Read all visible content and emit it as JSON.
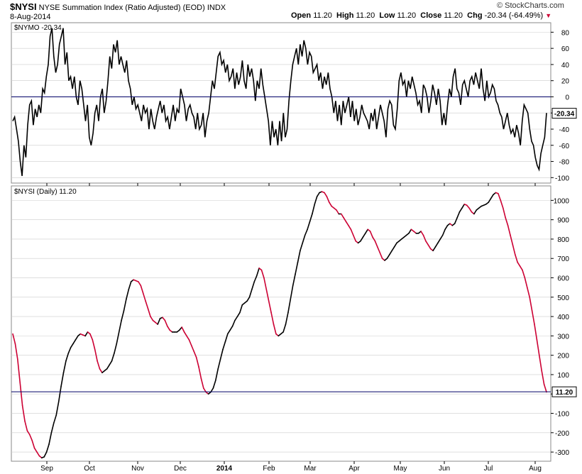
{
  "header": {
    "symbol": "$NYSI",
    "description": "NYSE Summation Index (Ratio Adjusted) (EOD)",
    "exchange": "INDX",
    "date": "8-Aug-2014",
    "brand": "© StockCharts.com",
    "ohlc": {
      "open_label": "Open",
      "open": "11.20",
      "high_label": "High",
      "high": "11.20",
      "low_label": "Low",
      "low": "11.20",
      "close_label": "Close",
      "close": "11.20",
      "chg_label": "Chg",
      "chg": "-20.34 (-64.49%)",
      "chg_arrow": "▼"
    }
  },
  "colors": {
    "up": "#000000",
    "down": "#cc0033",
    "refline": "#000066",
    "grid": "#cccccc"
  },
  "chart_data": [
    {
      "type": "line",
      "panel": "top",
      "label": "$NYMO -20.34",
      "ylim": [
        -105,
        90
      ],
      "yticks": [
        80,
        60,
        40,
        20,
        0,
        -20,
        -40,
        -60,
        -80,
        -100
      ],
      "reference_line": 0,
      "last_value": "-20.34",
      "x_start": 0,
      "values": [
        -30,
        -25,
        -40,
        -55,
        -80,
        -98,
        -60,
        -75,
        -35,
        -10,
        -5,
        -35,
        -15,
        -25,
        -10,
        -20,
        10,
        5,
        25,
        40,
        75,
        85,
        50,
        30,
        40,
        65,
        75,
        85,
        40,
        55,
        20,
        25,
        10,
        25,
        0,
        -10,
        20,
        10,
        -10,
        -30,
        -10,
        -50,
        -60,
        -45,
        -20,
        -10,
        -30,
        0,
        10,
        -20,
        -5,
        20,
        50,
        35,
        65,
        55,
        70,
        40,
        50,
        40,
        30,
        45,
        20,
        10,
        -10,
        0,
        -15,
        -10,
        -20,
        -30,
        -10,
        -20,
        -15,
        -40,
        -15,
        -30,
        -40,
        -25,
        -15,
        -5,
        -20,
        -10,
        -30,
        -25,
        -40,
        -25,
        -10,
        -30,
        -15,
        -20,
        10,
        0,
        -10,
        -30,
        -15,
        -10,
        -20,
        -25,
        -40,
        -20,
        -40,
        -35,
        -20,
        -50,
        -30,
        -20,
        0,
        20,
        10,
        30,
        50,
        55,
        40,
        45,
        30,
        40,
        20,
        25,
        35,
        10,
        30,
        15,
        25,
        45,
        20,
        10,
        40,
        25,
        35,
        20,
        -5,
        20,
        10,
        35,
        15,
        0,
        -15,
        -30,
        -60,
        -30,
        -50,
        -40,
        -60,
        -30,
        -55,
        -20,
        -50,
        -40,
        -5,
        20,
        40,
        50,
        60,
        40,
        65,
        50,
        70,
        60,
        40,
        55,
        50,
        30,
        35,
        40,
        20,
        30,
        10,
        25,
        15,
        30,
        10,
        0,
        -20,
        -5,
        -30,
        -10,
        -35,
        -5,
        -20,
        -10,
        0,
        -25,
        -5,
        -30,
        -15,
        -35,
        -25,
        -10,
        -20,
        -25,
        -30,
        -40,
        -20,
        -30,
        -15,
        -40,
        -25,
        -10,
        -20,
        -30,
        -50,
        -15,
        -5,
        -10,
        -35,
        -40,
        -15,
        20,
        30,
        15,
        20,
        0,
        20,
        10,
        25,
        15,
        5,
        -10,
        -5,
        -20,
        15,
        10,
        0,
        -20,
        -5,
        15,
        5,
        -10,
        10,
        -5,
        -35,
        -20,
        -35,
        -10,
        10,
        0,
        25,
        35,
        10,
        5,
        -10,
        15,
        20,
        10,
        0,
        20,
        25,
        15,
        30,
        20,
        10,
        35,
        10,
        -5,
        20,
        0,
        5,
        15,
        10,
        -5,
        -10,
        -20,
        -25,
        -40,
        -30,
        -20,
        -35,
        -45,
        -40,
        -50,
        -35,
        -45,
        -60,
        -30,
        -10,
        -15,
        -20,
        -40,
        -55,
        -60,
        -75,
        -85,
        -90,
        -70,
        -60,
        -50,
        -20
      ]
    },
    {
      "type": "line",
      "panel": "bottom",
      "label": "$NYSI (Daily) 11.20",
      "ylim": [
        -340,
        1060
      ],
      "yticks": [
        1000,
        900,
        800,
        700,
        600,
        500,
        400,
        300,
        200,
        100,
        0,
        -100,
        -200,
        -300
      ],
      "reference_line": 11.2,
      "last_value": "11.20",
      "x_start": 0,
      "values": [
        310,
        260,
        180,
        60,
        -60,
        -140,
        -190,
        -210,
        -240,
        -280,
        -300,
        -320,
        -330,
        -325,
        -300,
        -260,
        -200,
        -150,
        -110,
        -40,
        40,
        110,
        170,
        210,
        240,
        260,
        280,
        300,
        310,
        305,
        300,
        320,
        310,
        280,
        230,
        170,
        130,
        110,
        120,
        130,
        150,
        170,
        210,
        260,
        320,
        380,
        430,
        490,
        540,
        580,
        590,
        585,
        580,
        560,
        520,
        480,
        440,
        400,
        380,
        370,
        360,
        390,
        395,
        380,
        350,
        330,
        320,
        320,
        320,
        330,
        345,
        320,
        300,
        280,
        250,
        220,
        190,
        140,
        80,
        30,
        10,
        0,
        10,
        30,
        70,
        130,
        180,
        230,
        270,
        310,
        330,
        350,
        380,
        400,
        420,
        460,
        470,
        480,
        500,
        540,
        580,
        610,
        650,
        640,
        600,
        540,
        480,
        420,
        360,
        310,
        300,
        310,
        320,
        360,
        420,
        490,
        560,
        620,
        680,
        740,
        780,
        820,
        850,
        890,
        930,
        980,
        1020,
        1040,
        1045,
        1040,
        1020,
        990,
        970,
        960,
        950,
        930,
        930,
        910,
        890,
        870,
        850,
        820,
        790,
        780,
        790,
        810,
        830,
        850,
        840,
        810,
        790,
        760,
        730,
        700,
        690,
        700,
        720,
        740,
        760,
        780,
        790,
        800,
        810,
        820,
        830,
        850,
        840,
        830,
        830,
        840,
        820,
        790,
        770,
        750,
        740,
        760,
        780,
        800,
        820,
        850,
        870,
        880,
        870,
        880,
        910,
        940,
        960,
        980,
        975,
        960,
        940,
        930,
        950,
        960,
        970,
        975,
        980,
        990,
        1010,
        1030,
        1040,
        1035,
        1000,
        960,
        910,
        870,
        820,
        770,
        720,
        680,
        660,
        640,
        600,
        550,
        500,
        430,
        360,
        280,
        200,
        120,
        50,
        10
      ]
    }
  ],
  "x_axis": {
    "labels": [
      "Sep",
      "Oct",
      "Nov",
      "Dec",
      "2014",
      "Feb",
      "Mar",
      "Apr",
      "May",
      "Jun",
      "Jul",
      "Aug"
    ],
    "bold_label": "2014"
  }
}
